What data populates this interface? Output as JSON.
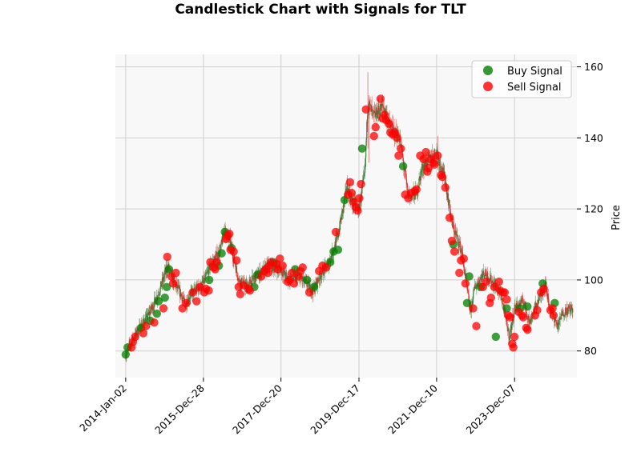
{
  "chart_data": {
    "type": "candlestick",
    "title": "Candlestick Chart with Signals for TLT",
    "xlabel": "",
    "ylabel": "Price",
    "ylim": [
      72.5,
      163.5
    ],
    "xlim": [
      "2013-09-28",
      "2025-07-10"
    ],
    "yticks": [
      80,
      100,
      120,
      140,
      160
    ],
    "xticks": [
      "2014-Jan-02",
      "2015-Dec-28",
      "2017-Dec-20",
      "2019-Dec-17",
      "2021-Dec-10",
      "2023-Dec-07"
    ],
    "grid": true,
    "background": "#f8f8f8",
    "legend_position": "top-right",
    "legend": [
      {
        "label": "Buy Signal",
        "color": "#008000"
      },
      {
        "label": "Sell Signal",
        "color": "#ff0000"
      }
    ],
    "price_path": [
      [
        "2014-01-02",
        79
      ],
      [
        "2014-02-15",
        82
      ],
      [
        "2014-05-01",
        86
      ],
      [
        "2014-08-01",
        90
      ],
      [
        "2014-11-01",
        96
      ],
      [
        "2015-01-30",
        104
      ],
      [
        "2015-03-15",
        100
      ],
      [
        "2015-06-01",
        96
      ],
      [
        "2015-07-10",
        93
      ],
      [
        "2015-09-01",
        96
      ],
      [
        "2015-12-28",
        99
      ],
      [
        "2016-03-01",
        104
      ],
      [
        "2016-06-01",
        108
      ],
      [
        "2016-07-08",
        114
      ],
      [
        "2016-09-01",
        111
      ],
      [
        "2016-11-20",
        100
      ],
      [
        "2017-02-01",
        98
      ],
      [
        "2017-05-01",
        101
      ],
      [
        "2017-09-01",
        104
      ],
      [
        "2017-12-20",
        103
      ],
      [
        "2018-03-01",
        100
      ],
      [
        "2018-06-01",
        101
      ],
      [
        "2018-10-15",
        97
      ],
      [
        "2019-01-01",
        102
      ],
      [
        "2019-03-01",
        104
      ],
      [
        "2019-06-01",
        112
      ],
      [
        "2019-08-28",
        126
      ],
      [
        "2019-10-15",
        122
      ],
      [
        "2019-12-17",
        120
      ],
      [
        "2020-02-10",
        130
      ],
      [
        "2020-03-09",
        150
      ],
      [
        "2020-05-01",
        146
      ],
      [
        "2020-07-31",
        149
      ],
      [
        "2020-10-01",
        143
      ],
      [
        "2020-12-31",
        140
      ],
      [
        "2021-03-18",
        124
      ],
      [
        "2021-06-01",
        124
      ],
      [
        "2021-08-01",
        132
      ],
      [
        "2021-12-10",
        136
      ],
      [
        "2022-03-01",
        128
      ],
      [
        "2022-05-01",
        116
      ],
      [
        "2022-08-01",
        108
      ],
      [
        "2022-10-21",
        91
      ],
      [
        "2022-12-01",
        98
      ],
      [
        "2023-03-01",
        102
      ],
      [
        "2023-05-01",
        100
      ],
      [
        "2023-08-01",
        96
      ],
      [
        "2023-10-19",
        84
      ],
      [
        "2023-12-07",
        92
      ],
      [
        "2024-03-01",
        94
      ],
      [
        "2024-04-25",
        88
      ],
      [
        "2024-06-01",
        91
      ],
      [
        "2024-09-16",
        99
      ],
      [
        "2024-11-01",
        92
      ],
      [
        "2025-01-14",
        87
      ],
      [
        "2025-03-01",
        91
      ],
      [
        "2025-06-01",
        92
      ]
    ],
    "buy_signals": [
      [
        "2014-01-02",
        79
      ],
      [
        "2014-01-20",
        81
      ],
      [
        "2014-05-25",
        86.5
      ],
      [
        "2014-08-20",
        88.5
      ],
      [
        "2014-10-20",
        90.5
      ],
      [
        "2014-11-05",
        94
      ],
      [
        "2015-01-02",
        95
      ],
      [
        "2015-01-20",
        98
      ],
      [
        "2015-02-10",
        103
      ],
      [
        "2016-02-20",
        100
      ],
      [
        "2016-05-20",
        104
      ],
      [
        "2016-06-15",
        107.5
      ],
      [
        "2016-07-15",
        113.5
      ],
      [
        "2016-09-15",
        109
      ],
      [
        "2017-04-15",
        98
      ],
      [
        "2017-05-15",
        101.5
      ],
      [
        "2017-10-10",
        105
      ],
      [
        "2018-05-01",
        103
      ],
      [
        "2018-08-20",
        100
      ],
      [
        "2018-10-25",
        98
      ],
      [
        "2019-03-25",
        105
      ],
      [
        "2019-04-25",
        108
      ],
      [
        "2019-06-05",
        108.5
      ],
      [
        "2019-08-05",
        122.5
      ],
      [
        "2020-01-15",
        137
      ],
      [
        "2021-02-01",
        132
      ],
      [
        "2022-05-15",
        110
      ],
      [
        "2022-09-20",
        93.5
      ],
      [
        "2022-10-10",
        101
      ],
      [
        "2023-01-25",
        98
      ],
      [
        "2023-06-15",
        84
      ],
      [
        "2023-09-25",
        92
      ],
      [
        "2024-01-25",
        92
      ],
      [
        "2024-04-05",
        92.5
      ],
      [
        "2024-08-25",
        99
      ],
      [
        "2024-12-15",
        93.5
      ]
    ],
    "sell_signals": [
      [
        "2014-02-25",
        81
      ],
      [
        "2014-03-10",
        82.5
      ],
      [
        "2014-04-01",
        84
      ],
      [
        "2014-06-15",
        85
      ],
      [
        "2014-07-10",
        87
      ],
      [
        "2014-09-25",
        88
      ],
      [
        "2014-12-20",
        92
      ],
      [
        "2015-01-25",
        106.5
      ],
      [
        "2015-03-05",
        101
      ],
      [
        "2015-03-20",
        99
      ],
      [
        "2015-04-15",
        102
      ],
      [
        "2015-06-15",
        92
      ],
      [
        "2015-07-20",
        93.5
      ],
      [
        "2015-09-20",
        96.5
      ],
      [
        "2015-10-25",
        94
      ],
      [
        "2015-11-25",
        98
      ],
      [
        "2016-01-05",
        96.5
      ],
      [
        "2016-01-20",
        97.5
      ],
      [
        "2016-02-15",
        97
      ],
      [
        "2016-03-01",
        105
      ],
      [
        "2016-04-01",
        103.5
      ],
      [
        "2016-04-15",
        103
      ],
      [
        "2016-05-01",
        105
      ],
      [
        "2016-07-25",
        111.5
      ],
      [
        "2016-08-10",
        112.5
      ],
      [
        "2016-08-25",
        113
      ],
      [
        "2016-09-05",
        108.5
      ],
      [
        "2016-10-05",
        108
      ],
      [
        "2016-11-01",
        105.5
      ],
      [
        "2016-11-20",
        98
      ],
      [
        "2016-12-05",
        96
      ],
      [
        "2017-01-05",
        98.5
      ],
      [
        "2017-02-20",
        97.5
      ],
      [
        "2017-03-05",
        97
      ],
      [
        "2017-06-20",
        101
      ],
      [
        "2017-07-15",
        102.5
      ],
      [
        "2017-08-05",
        103
      ],
      [
        "2017-08-20",
        102
      ],
      [
        "2017-09-01",
        104
      ],
      [
        "2017-09-20",
        105
      ],
      [
        "2017-11-05",
        104.5
      ],
      [
        "2017-11-20",
        103
      ],
      [
        "2017-12-10",
        106
      ],
      [
        "2018-01-05",
        104
      ],
      [
        "2018-02-20",
        99.5
      ],
      [
        "2018-03-10",
        100
      ],
      [
        "2018-04-01",
        102
      ],
      [
        "2018-04-20",
        99
      ],
      [
        "2018-06-01",
        101
      ],
      [
        "2018-06-20",
        102.5
      ],
      [
        "2018-07-10",
        103.5
      ],
      [
        "2018-09-10",
        96.5
      ],
      [
        "2018-12-10",
        102.5
      ],
      [
        "2019-01-10",
        104
      ],
      [
        "2019-02-15",
        103.5
      ],
      [
        "2019-05-15",
        113.5
      ],
      [
        "2019-09-05",
        124
      ],
      [
        "2019-09-25",
        127.5
      ],
      [
        "2019-10-10",
        124.5
      ],
      [
        "2019-10-25",
        122
      ],
      [
        "2019-11-15",
        120.5
      ],
      [
        "2019-12-05",
        119.5
      ],
      [
        "2019-12-20",
        123
      ],
      [
        "2020-01-05",
        127
      ],
      [
        "2020-02-20",
        148
      ],
      [
        "2020-05-05",
        140.5
      ],
      [
        "2020-05-20",
        143
      ],
      [
        "2020-07-05",
        151
      ],
      [
        "2020-07-25",
        145.5
      ],
      [
        "2020-08-10",
        146.5
      ],
      [
        "2020-08-25",
        145
      ],
      [
        "2020-09-20",
        144
      ],
      [
        "2020-10-05",
        141.5
      ],
      [
        "2020-10-25",
        141
      ],
      [
        "2020-11-15",
        141.5
      ],
      [
        "2020-12-05",
        140
      ],
      [
        "2020-12-20",
        135
      ],
      [
        "2021-01-10",
        137
      ],
      [
        "2021-02-20",
        124
      ],
      [
        "2021-03-20",
        123
      ],
      [
        "2021-04-15",
        124.5
      ],
      [
        "2021-05-20",
        125
      ],
      [
        "2021-06-05",
        125.5
      ],
      [
        "2021-07-10",
        135
      ],
      [
        "2021-08-10",
        134
      ],
      [
        "2021-09-01",
        136
      ],
      [
        "2021-09-15",
        130.5
      ],
      [
        "2021-09-25",
        131.5
      ],
      [
        "2021-10-20",
        134
      ],
      [
        "2021-11-10",
        133
      ],
      [
        "2021-11-20",
        132.5
      ],
      [
        "2021-12-20",
        135
      ],
      [
        "2022-01-20",
        129.5
      ],
      [
        "2022-02-01",
        129
      ],
      [
        "2022-03-01",
        126
      ],
      [
        "2022-04-10",
        117.5
      ],
      [
        "2022-05-01",
        111
      ],
      [
        "2022-05-25",
        108
      ],
      [
        "2022-07-10",
        102
      ],
      [
        "2022-07-25",
        105.5
      ],
      [
        "2022-08-20",
        106
      ],
      [
        "2022-09-05",
        99
      ],
      [
        "2022-11-15",
        92
      ],
      [
        "2022-12-15",
        87
      ],
      [
        "2023-02-15",
        98
      ],
      [
        "2023-03-15",
        99.5
      ],
      [
        "2023-04-20",
        93.5
      ],
      [
        "2023-05-01",
        95
      ],
      [
        "2023-06-01",
        98
      ],
      [
        "2023-07-15",
        99.5
      ],
      [
        "2023-07-25",
        97
      ],
      [
        "2023-08-20",
        96.5
      ],
      [
        "2023-09-05",
        96.5
      ],
      [
        "2023-09-25",
        94.5
      ],
      [
        "2023-10-10",
        90
      ],
      [
        "2023-10-25",
        89.5
      ],
      [
        "2023-11-15",
        82
      ],
      [
        "2023-11-25",
        81
      ],
      [
        "2023-12-05",
        84
      ],
      [
        "2024-01-15",
        91
      ],
      [
        "2024-02-15",
        90
      ],
      [
        "2024-02-25",
        89.5
      ],
      [
        "2024-03-25",
        86.5
      ],
      [
        "2024-04-05",
        86
      ],
      [
        "2024-06-15",
        90
      ],
      [
        "2024-07-05",
        91.5
      ],
      [
        "2024-08-10",
        96.5
      ],
      [
        "2024-09-05",
        97.5
      ],
      [
        "2024-11-05",
        91.5
      ],
      [
        "2024-11-25",
        92
      ],
      [
        "2024-12-05",
        90
      ]
    ]
  }
}
